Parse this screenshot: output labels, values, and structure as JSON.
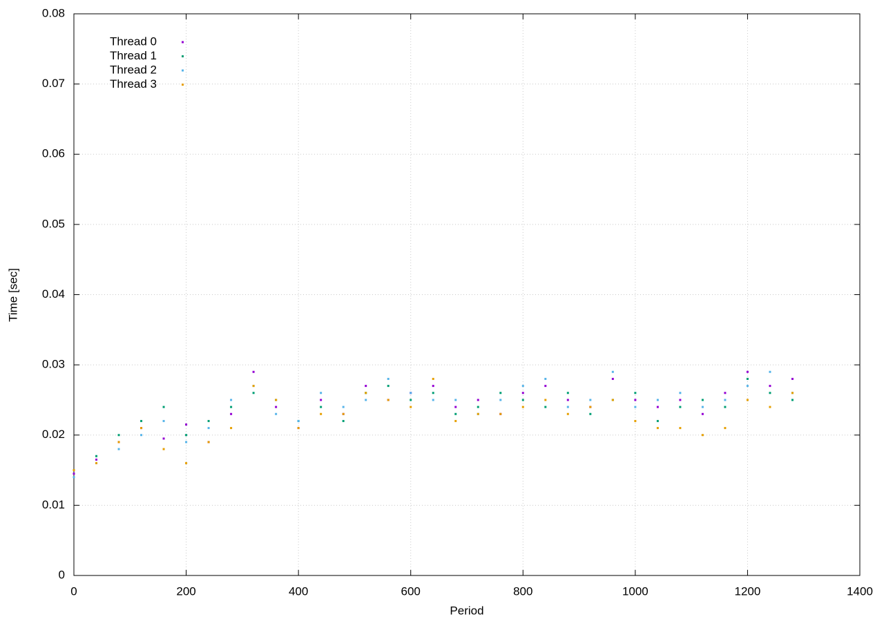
{
  "chart_data": {
    "type": "scatter",
    "xlabel": "Period",
    "ylabel": "Time [sec]",
    "xlim": [
      0,
      1400
    ],
    "xticks": [
      0,
      200,
      400,
      600,
      800,
      1000,
      1200,
      1400
    ],
    "ylim": [
      0,
      0.08
    ],
    "yticks": [
      0,
      0.01,
      0.02,
      0.03,
      0.04,
      0.05,
      0.06,
      0.07,
      0.08
    ],
    "grid": true,
    "legend": "top-left",
    "x": [
      0,
      40,
      80,
      120,
      160,
      200,
      240,
      280,
      320,
      360,
      400,
      440,
      480,
      520,
      560,
      600,
      640,
      680,
      720,
      760,
      800,
      840,
      880,
      920,
      960,
      1000,
      1040,
      1080,
      1120,
      1160,
      1200,
      1240,
      1280
    ],
    "series": [
      {
        "name": "Thread 0",
        "color": "#9400d3",
        "values": [
          0.0145,
          0.0165,
          0.019,
          0.021,
          0.0195,
          0.0215,
          0.019,
          0.023,
          0.029,
          0.024,
          0.021,
          0.025,
          0.023,
          0.027,
          0.025,
          0.026,
          0.027,
          0.024,
          0.025,
          0.023,
          0.026,
          0.027,
          0.025,
          0.024,
          0.028,
          0.025,
          0.024,
          0.025,
          0.023,
          0.026,
          0.029,
          0.027,
          0.028
        ]
      },
      {
        "name": "Thread 1",
        "color": "#009e73",
        "values": [
          0.015,
          0.017,
          0.02,
          0.022,
          0.024,
          0.02,
          0.022,
          0.024,
          0.026,
          0.025,
          0.022,
          0.024,
          0.022,
          0.026,
          0.027,
          0.025,
          0.026,
          0.023,
          0.024,
          0.026,
          0.025,
          0.024,
          0.026,
          0.023,
          0.025,
          0.026,
          0.022,
          0.024,
          0.025,
          0.024,
          0.028,
          0.026,
          0.025
        ]
      },
      {
        "name": "Thread 2",
        "color": "#56b4e9",
        "values": [
          0.014,
          0.016,
          0.018,
          0.02,
          0.022,
          0.019,
          0.021,
          0.025,
          0.027,
          0.023,
          0.022,
          0.026,
          0.024,
          0.025,
          0.028,
          0.026,
          0.025,
          0.025,
          0.023,
          0.025,
          0.027,
          0.028,
          0.024,
          0.025,
          0.029,
          0.024,
          0.025,
          0.026,
          0.024,
          0.025,
          0.027,
          0.029,
          0.026
        ]
      },
      {
        "name": "Thread 3",
        "color": "#e69f00",
        "values": [
          0.015,
          0.016,
          0.019,
          0.021,
          0.018,
          0.016,
          0.019,
          0.021,
          0.027,
          0.025,
          0.021,
          0.023,
          0.023,
          0.026,
          0.025,
          0.024,
          0.028,
          0.022,
          0.023,
          0.023,
          0.024,
          0.025,
          0.023,
          0.024,
          0.025,
          0.022,
          0.021,
          0.021,
          0.02,
          0.021,
          0.025,
          0.024,
          0.026
        ]
      }
    ]
  }
}
